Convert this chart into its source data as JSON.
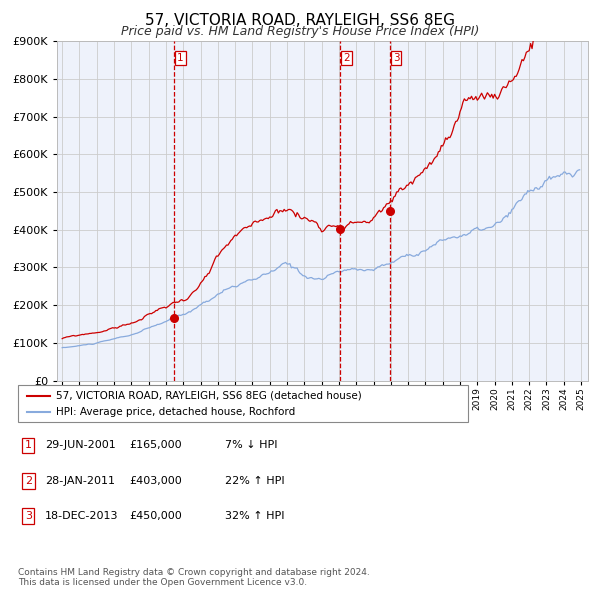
{
  "title": "57, VICTORIA ROAD, RAYLEIGH, SS6 8EG",
  "subtitle": "Price paid vs. HM Land Registry's House Price Index (HPI)",
  "title_fontsize": 11,
  "subtitle_fontsize": 9,
  "ylim": [
    0,
    900000
  ],
  "yticks": [
    0,
    100000,
    200000,
    300000,
    400000,
    500000,
    600000,
    700000,
    800000,
    900000
  ],
  "background_color": "#ffffff",
  "plot_bg_color": "#eef2fb",
  "grid_color": "#cccccc",
  "red_line_color": "#cc0000",
  "blue_line_color": "#88aadd",
  "legend_label_red": "57, VICTORIA ROAD, RAYLEIGH, SS6 8EG (detached house)",
  "legend_label_blue": "HPI: Average price, detached house, Rochford",
  "sale_prices": [
    165000,
    403000,
    450000
  ],
  "sale_labels": [
    "1",
    "2",
    "3"
  ],
  "sale_annotations": [
    [
      "1",
      "29-JUN-2001",
      "£165,000",
      "7% ↓ HPI"
    ],
    [
      "2",
      "28-JAN-2011",
      "£403,000",
      "22% ↑ HPI"
    ],
    [
      "3",
      "18-DEC-2013",
      "£450,000",
      "32% ↑ HPI"
    ]
  ],
  "sale_year_floats": [
    2001.493,
    2011.074,
    2013.959
  ],
  "vline_color": "#cc0000",
  "footnote": "Contains HM Land Registry data © Crown copyright and database right 2024.\nThis data is licensed under the Open Government Licence v3.0.",
  "footnote_fontsize": 6.5
}
